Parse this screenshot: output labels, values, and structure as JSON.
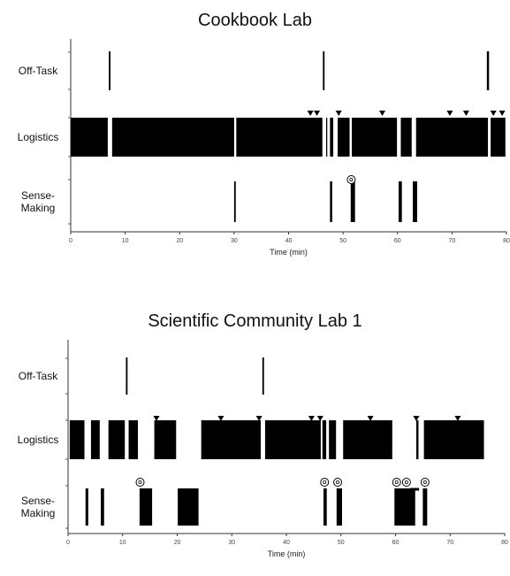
{
  "chart_data": [
    {
      "type": "timeline",
      "title": "Cookbook Lab",
      "xlabel": "Time (min)",
      "xlim": [
        0,
        80
      ],
      "xticks": [
        0,
        10,
        20,
        30,
        40,
        50,
        60,
        70,
        80
      ],
      "rows": [
        {
          "name": "Off-Task",
          "label_lines": [
            "Off-Task"
          ],
          "intervals": [
            [
              7.0,
              7.3
            ],
            [
              46.3,
              46.6
            ],
            [
              76.4,
              76.8
            ]
          ]
        },
        {
          "name": "Logistics",
          "label_lines": [
            "Logistics"
          ],
          "intervals": [
            [
              0,
              6.8
            ],
            [
              7.6,
              30.0
            ],
            [
              30.4,
              46.2
            ],
            [
              46.9,
              47.1
            ],
            [
              47.6,
              48.2
            ],
            [
              49.0,
              51.2
            ],
            [
              51.6,
              59.9
            ],
            [
              60.6,
              62.6
            ],
            [
              63.4,
              76.6
            ],
            [
              77.1,
              79.8
            ]
          ]
        },
        {
          "name": "Sense-Making",
          "label_lines": [
            "Sense-",
            "Making"
          ],
          "intervals": [
            [
              30.0,
              30.3
            ],
            [
              47.6,
              48.0
            ],
            [
              51.4,
              52.2
            ],
            [
              60.2,
              60.8
            ],
            [
              62.8,
              63.6
            ]
          ]
        }
      ],
      "triangles": [
        44,
        45.2,
        49.2,
        57.2,
        69.6,
        72.6,
        77.6,
        79.2
      ],
      "circles": [
        51.5
      ]
    },
    {
      "type": "timeline",
      "title": "Scientific Community Lab 1",
      "xlabel": "Time (min)",
      "xlim": [
        0,
        80
      ],
      "xticks": [
        0,
        10,
        20,
        30,
        40,
        50,
        60,
        70,
        80
      ],
      "rows": [
        {
          "name": "Off-Task",
          "label_lines": [
            "Off-Task"
          ],
          "intervals": [
            [
              10.6,
              10.9
            ],
            [
              35.6,
              35.9
            ]
          ]
        },
        {
          "name": "Logistics",
          "label_lines": [
            "Logistics"
          ],
          "intervals": [
            [
              0.3,
              3.0
            ],
            [
              4.2,
              5.8
            ],
            [
              7.4,
              10.4
            ],
            [
              11.1,
              12.8
            ],
            [
              15.8,
              19.8
            ],
            [
              24.4,
              35.3
            ],
            [
              36.1,
              46.3
            ],
            [
              46.6,
              47.3
            ],
            [
              47.8,
              49.1
            ],
            [
              50.4,
              59.4
            ],
            [
              63.8,
              64.2
            ],
            [
              65.2,
              76.2
            ]
          ]
        },
        {
          "name": "Sense-Making",
          "label_lines": [
            "Sense-",
            "Making"
          ],
          "intervals": [
            [
              3.2,
              3.7
            ],
            [
              6.0,
              6.6
            ],
            [
              13.1,
              15.4
            ],
            [
              20.1,
              23.9
            ],
            [
              46.8,
              47.4
            ],
            [
              49.2,
              50.2
            ],
            [
              59.8,
              63.6
            ],
            [
              65.0,
              65.8
            ]
          ]
        }
      ],
      "triangles": [
        16.2,
        28.0,
        35.0,
        44.6,
        46.2,
        55.4,
        63.8,
        71.4
      ],
      "circles": [
        13.2,
        47.0,
        49.4,
        60.2,
        62.0,
        65.4
      ],
      "dash_markers": [
        63.5
      ]
    }
  ]
}
